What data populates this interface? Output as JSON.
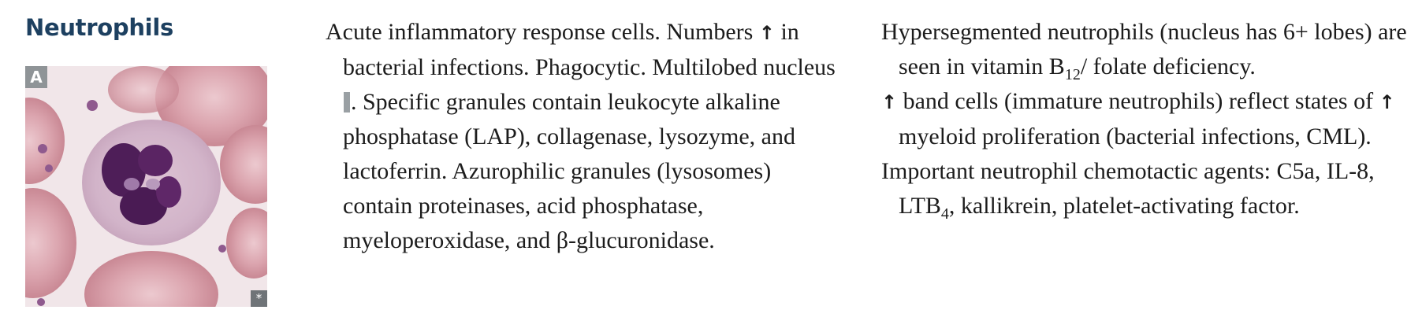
{
  "section": {
    "title": "Neutrophils"
  },
  "image": {
    "label": "A",
    "copyright_mark": "*"
  },
  "column1": {
    "p1": {
      "t1": "Acute inflammatory response cells. Numbers",
      "arrow": "↑",
      "t2": " in bacterial infections. Phagocytic. Multilobed nucleus ",
      "ref": "A",
      "t3": ". Specific granules contain leukocyte alkaline phosphatase (LAP), collagenase, lysozyme, and lactoferrin. Azurophilic granules (lysosomes) contain proteinases, acid phosphatase, myeloperoxidase, and β-glucuronidase."
    }
  },
  "column2": {
    "p1": {
      "t1": "Hypersegmented neutrophils (nucleus has 6+ lobes) are seen in vitamin B",
      "sub": "12",
      "t2": "/ folate deficiency."
    },
    "p2": {
      "arrow1": "↑",
      "t1": " band cells (immature neutrophils) reflect states of ",
      "arrow2": "↑",
      "t2": " myeloid proliferation (bacterial infections, CML)."
    },
    "p3": {
      "t1": "Important neutrophil chemotactic agents: C5a, IL-8, LTB",
      "sub": "4",
      "t2": ", kallikrein, platelet-activating factor."
    }
  }
}
